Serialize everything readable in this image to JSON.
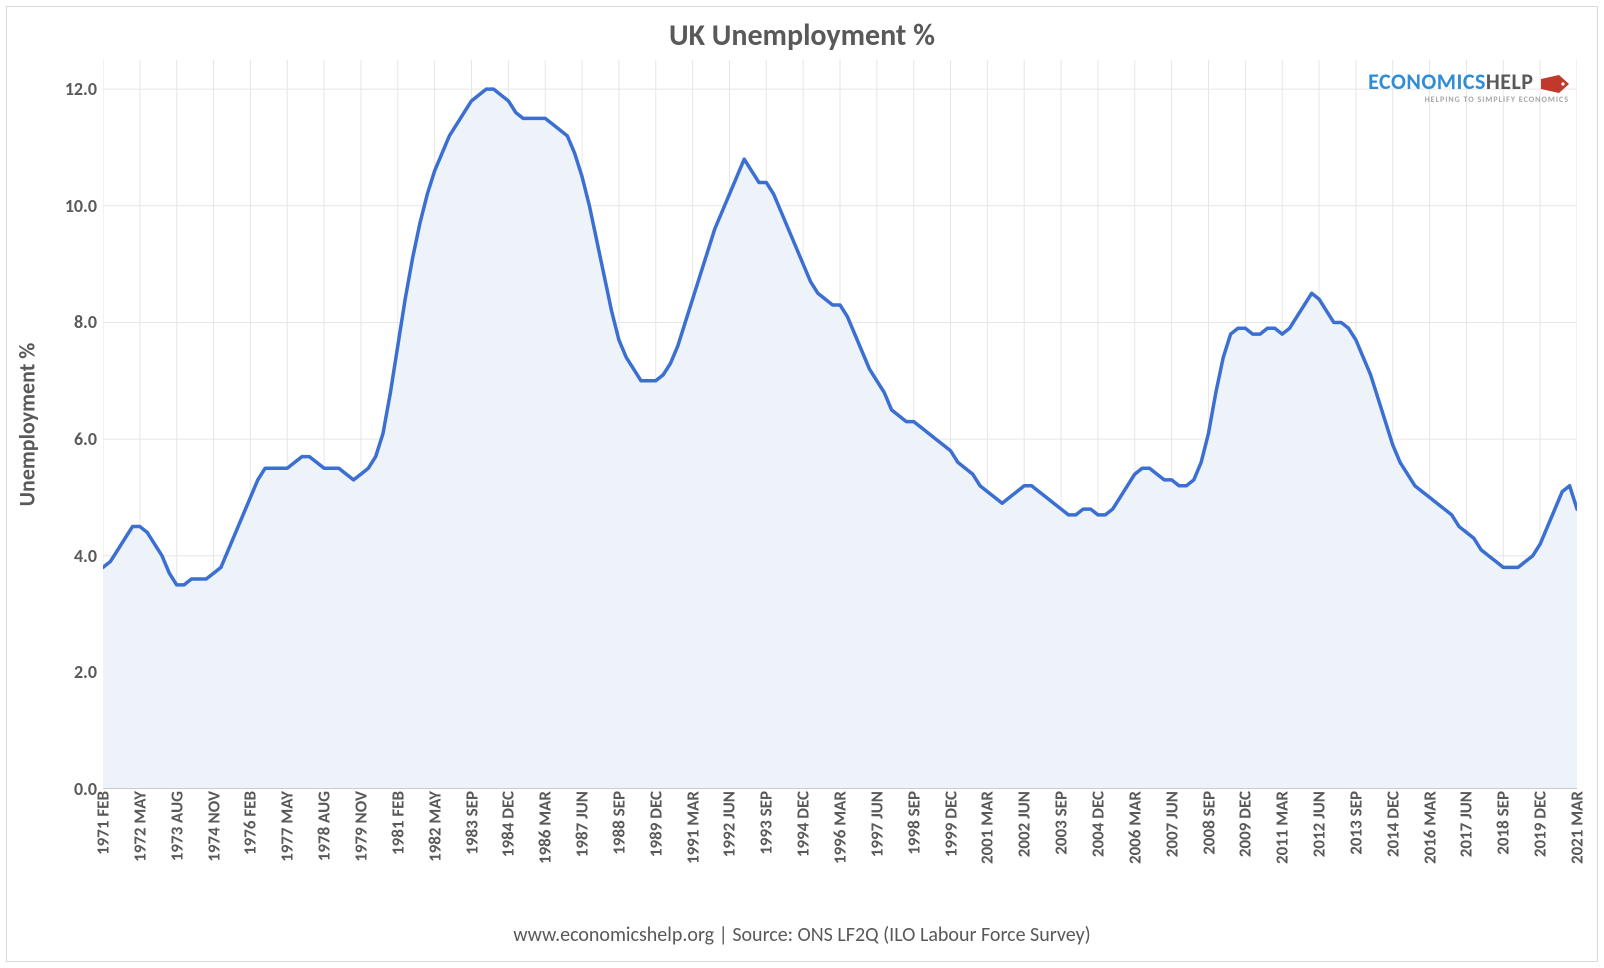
{
  "chart": {
    "type": "area",
    "title": "UK Unemployment %",
    "ylabel": "Unemployment %",
    "caption": "www.economicshelp.org  |  Source:  ONS LF2Q (ILO Labour Force Survey)",
    "logo": {
      "text1": "ECONOMICS",
      "text2": "HELP",
      "subtitle": "HELPING TO SIMPLIFY ECONOMICS",
      "color_primary": "#2f8dd6",
      "color_secondary": "#595959",
      "tag_color": "#c0392b"
    },
    "colors": {
      "line": "#3b6fd1",
      "fill": "#eef2f9",
      "grid": "#e6e6e6",
      "axis": "#bfbfbf",
      "background": "#ffffff",
      "border": "#d9d9d9",
      "text": "#595959"
    },
    "line_width": 3.5,
    "y": {
      "min": 0.0,
      "max": 12.5,
      "ticks": [
        0.0,
        2.0,
        4.0,
        6.0,
        8.0,
        10.0,
        12.0
      ],
      "tick_labels": [
        "0.0",
        "2.0",
        "4.0",
        "6.0",
        "8.0",
        "10.0",
        "12.0"
      ],
      "label_fontsize": 22,
      "tick_fontsize": 18
    },
    "x": {
      "tick_fontsize": 17,
      "labels": [
        "1971 FEB",
        "1972 MAY",
        "1973 AUG",
        "1974 NOV",
        "1976 FEB",
        "1977 MAY",
        "1978 AUG",
        "1979 NOV",
        "1981 FEB",
        "1982 MAY",
        "1983 SEP",
        "1984 DEC",
        "1986 MAR",
        "1987 JUN",
        "1988 SEP",
        "1989 DEC",
        "1991 MAR",
        "1992 JUN",
        "1993 SEP",
        "1994 DEC",
        "1996 MAR",
        "1997 JUN",
        "1998 SEP",
        "1999 DEC",
        "2001 MAR",
        "2002 JUN",
        "2003 SEP",
        "2004 DEC",
        "2006 MAR",
        "2007 JUN",
        "2008 SEP",
        "2009 DEC",
        "2011 MAR",
        "2012 JUN",
        "2013 SEP",
        "2014 DEC",
        "2016 MAR",
        "2017 JUN",
        "2018 SEP",
        "2019 DEC",
        "2021 MAR"
      ],
      "label_indices": [
        0,
        5,
        10,
        15,
        20,
        25,
        30,
        35,
        40,
        45,
        50,
        55,
        60,
        65,
        70,
        75,
        80,
        85,
        90,
        95,
        100,
        105,
        110,
        115,
        120,
        125,
        130,
        135,
        140,
        145,
        150,
        155,
        160,
        165,
        170,
        175,
        180,
        185,
        190,
        195,
        200
      ]
    },
    "series": {
      "name": "UK Unemployment %",
      "n_points": 201,
      "values": [
        3.8,
        3.9,
        4.1,
        4.3,
        4.5,
        4.5,
        4.4,
        4.2,
        4.0,
        3.7,
        3.5,
        3.5,
        3.6,
        3.6,
        3.6,
        3.7,
        3.8,
        4.1,
        4.4,
        4.7,
        5.0,
        5.3,
        5.5,
        5.5,
        5.5,
        5.5,
        5.6,
        5.7,
        5.7,
        5.6,
        5.5,
        5.5,
        5.5,
        5.4,
        5.3,
        5.4,
        5.5,
        5.7,
        6.1,
        6.8,
        7.6,
        8.4,
        9.1,
        9.7,
        10.2,
        10.6,
        10.9,
        11.2,
        11.4,
        11.6,
        11.8,
        11.9,
        12.0,
        12.0,
        11.9,
        11.8,
        11.6,
        11.5,
        11.5,
        11.5,
        11.5,
        11.4,
        11.3,
        11.2,
        10.9,
        10.5,
        10.0,
        9.4,
        8.8,
        8.2,
        7.7,
        7.4,
        7.2,
        7.0,
        7.0,
        7.0,
        7.1,
        7.3,
        7.6,
        8.0,
        8.4,
        8.8,
        9.2,
        9.6,
        9.9,
        10.2,
        10.5,
        10.8,
        10.6,
        10.4,
        10.4,
        10.2,
        9.9,
        9.6,
        9.3,
        9.0,
        8.7,
        8.5,
        8.4,
        8.3,
        8.3,
        8.1,
        7.8,
        7.5,
        7.2,
        7.0,
        6.8,
        6.5,
        6.4,
        6.3,
        6.3,
        6.2,
        6.1,
        6.0,
        5.9,
        5.8,
        5.6,
        5.5,
        5.4,
        5.2,
        5.1,
        5.0,
        4.9,
        5.0,
        5.1,
        5.2,
        5.2,
        5.1,
        5.0,
        4.9,
        4.8,
        4.7,
        4.7,
        4.8,
        4.8,
        4.7,
        4.7,
        4.8,
        5.0,
        5.2,
        5.4,
        5.5,
        5.5,
        5.4,
        5.3,
        5.3,
        5.2,
        5.2,
        5.3,
        5.6,
        6.1,
        6.8,
        7.4,
        7.8,
        7.9,
        7.9,
        7.8,
        7.8,
        7.9,
        7.9,
        7.8,
        7.9,
        8.1,
        8.3,
        8.5,
        8.4,
        8.2,
        8.0,
        8.0,
        7.9,
        7.7,
        7.4,
        7.1,
        6.7,
        6.3,
        5.9,
        5.6,
        5.4,
        5.2,
        5.1,
        5.0,
        4.9,
        4.8,
        4.7,
        4.5,
        4.4,
        4.3,
        4.1,
        4.0,
        3.9,
        3.8,
        3.8,
        3.8,
        3.9,
        4.0,
        4.2,
        4.5,
        4.8,
        5.1,
        5.2,
        4.8
      ]
    }
  }
}
